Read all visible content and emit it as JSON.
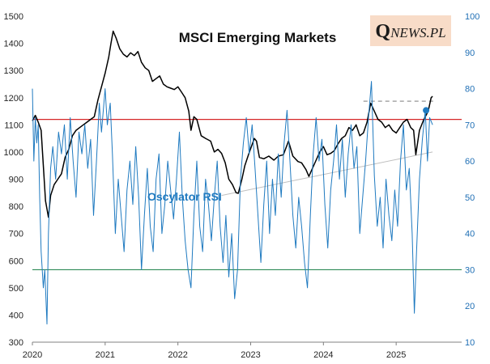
{
  "chart_data": {
    "type": "line",
    "title": "MSCI Emerging Markets",
    "logo": {
      "lead": "Q",
      "rest": "NEWS.PL"
    },
    "rsi_label": "Oscylator RSI",
    "left_axis": {
      "ticks": [
        300,
        400,
        500,
        600,
        700,
        800,
        900,
        1000,
        1100,
        1200,
        1300,
        1400,
        1500
      ],
      "ylim": [
        300,
        1500
      ]
    },
    "right_axis": {
      "ticks": [
        10,
        20,
        30,
        40,
        50,
        60,
        70,
        80,
        90,
        100
      ],
      "ylim": [
        10,
        100
      ]
    },
    "x_axis": {
      "ticks": [
        "2020",
        "2021",
        "2022",
        "2023",
        "2024",
        "2025"
      ],
      "xlim": [
        2020.0,
        2025.9
      ]
    },
    "reference_lines": [
      {
        "name": "rsi-overbought-line",
        "axis": "right",
        "value": 71.5,
        "color": "#d62728"
      },
      {
        "name": "rsi-oversold-line",
        "axis": "right",
        "value": 30,
        "color": "#2e8b57"
      }
    ],
    "resistance_line": {
      "axis": "left",
      "value": 1187,
      "x_start": 2024.55,
      "x_end": 2025.55,
      "color": "#a6a6a6"
    },
    "support_trendline": {
      "axis": "left",
      "points": [
        [
          2022.6,
          840
        ],
        [
          2025.5,
          1000
        ]
      ],
      "color": "#bfbfbf"
    },
    "current_rsi": {
      "x": 2025.4,
      "value": 74,
      "color": "#1f7ac0"
    },
    "series": [
      {
        "name": "MSCI Emerging Markets",
        "axis": "left",
        "color": "#000000",
        "points": [
          [
            2020.0,
            1115
          ],
          [
            2020.04,
            1135
          ],
          [
            2020.08,
            1110
          ],
          [
            2020.12,
            1080
          ],
          [
            2020.15,
            950
          ],
          [
            2020.18,
            820
          ],
          [
            2020.2,
            790
          ],
          [
            2020.22,
            760
          ],
          [
            2020.25,
            840
          ],
          [
            2020.3,
            880
          ],
          [
            2020.35,
            900
          ],
          [
            2020.4,
            920
          ],
          [
            2020.45,
            980
          ],
          [
            2020.5,
            1010
          ],
          [
            2020.55,
            1060
          ],
          [
            2020.6,
            1080
          ],
          [
            2020.65,
            1090
          ],
          [
            2020.7,
            1100
          ],
          [
            2020.75,
            1110
          ],
          [
            2020.8,
            1120
          ],
          [
            2020.85,
            1130
          ],
          [
            2020.9,
            1190
          ],
          [
            2020.95,
            1240
          ],
          [
            2021.0,
            1290
          ],
          [
            2021.05,
            1350
          ],
          [
            2021.08,
            1400
          ],
          [
            2021.11,
            1445
          ],
          [
            2021.15,
            1420
          ],
          [
            2021.2,
            1380
          ],
          [
            2021.25,
            1360
          ],
          [
            2021.3,
            1350
          ],
          [
            2021.35,
            1365
          ],
          [
            2021.4,
            1355
          ],
          [
            2021.45,
            1370
          ],
          [
            2021.5,
            1330
          ],
          [
            2021.55,
            1310
          ],
          [
            2021.6,
            1300
          ],
          [
            2021.65,
            1260
          ],
          [
            2021.7,
            1270
          ],
          [
            2021.75,
            1280
          ],
          [
            2021.8,
            1250
          ],
          [
            2021.85,
            1240
          ],
          [
            2021.9,
            1235
          ],
          [
            2021.95,
            1230
          ],
          [
            2022.0,
            1240
          ],
          [
            2022.05,
            1220
          ],
          [
            2022.1,
            1200
          ],
          [
            2022.15,
            1150
          ],
          [
            2022.18,
            1080
          ],
          [
            2022.22,
            1130
          ],
          [
            2022.26,
            1120
          ],
          [
            2022.32,
            1060
          ],
          [
            2022.38,
            1050
          ],
          [
            2022.45,
            1040
          ],
          [
            2022.5,
            1000
          ],
          [
            2022.55,
            1010
          ],
          [
            2022.6,
            995
          ],
          [
            2022.65,
            960
          ],
          [
            2022.7,
            900
          ],
          [
            2022.75,
            880
          ],
          [
            2022.8,
            850
          ],
          [
            2022.83,
            848
          ],
          [
            2022.88,
            900
          ],
          [
            2022.92,
            950
          ],
          [
            2022.97,
            990
          ],
          [
            2023.05,
            1050
          ],
          [
            2023.08,
            1040
          ],
          [
            2023.12,
            980
          ],
          [
            2023.18,
            975
          ],
          [
            2023.25,
            985
          ],
          [
            2023.32,
            970
          ],
          [
            2023.38,
            985
          ],
          [
            2023.45,
            990
          ],
          [
            2023.52,
            1040
          ],
          [
            2023.58,
            985
          ],
          [
            2023.65,
            965
          ],
          [
            2023.7,
            960
          ],
          [
            2023.76,
            935
          ],
          [
            2023.8,
            910
          ],
          [
            2023.85,
            940
          ],
          [
            2023.9,
            970
          ],
          [
            2023.95,
            1000
          ],
          [
            2024.0,
            1020
          ],
          [
            2024.05,
            990
          ],
          [
            2024.1,
            995
          ],
          [
            2024.15,
            1005
          ],
          [
            2024.2,
            1030
          ],
          [
            2024.25,
            1050
          ],
          [
            2024.3,
            1060
          ],
          [
            2024.35,
            1090
          ],
          [
            2024.4,
            1080
          ],
          [
            2024.45,
            1100
          ],
          [
            2024.5,
            1060
          ],
          [
            2024.55,
            1070
          ],
          [
            2024.6,
            1110
          ],
          [
            2024.65,
            1180
          ],
          [
            2024.7,
            1150
          ],
          [
            2024.75,
            1120
          ],
          [
            2024.8,
            1110
          ],
          [
            2024.85,
            1090
          ],
          [
            2024.9,
            1100
          ],
          [
            2024.95,
            1080
          ],
          [
            2025.0,
            1070
          ],
          [
            2025.05,
            1090
          ],
          [
            2025.1,
            1110
          ],
          [
            2025.15,
            1120
          ],
          [
            2025.2,
            1090
          ],
          [
            2025.24,
            1080
          ],
          [
            2025.27,
            990
          ],
          [
            2025.32,
            1080
          ],
          [
            2025.38,
            1120
          ],
          [
            2025.44,
            1150
          ],
          [
            2025.48,
            1200
          ],
          [
            2025.5,
            1205
          ]
        ]
      },
      {
        "name": "Oscylator RSI",
        "axis": "right",
        "color": "#1f7ac0",
        "points": [
          [
            2020.0,
            80
          ],
          [
            2020.02,
            60
          ],
          [
            2020.04,
            72
          ],
          [
            2020.06,
            65
          ],
          [
            2020.08,
            70
          ],
          [
            2020.1,
            50
          ],
          [
            2020.12,
            35
          ],
          [
            2020.15,
            25
          ],
          [
            2020.17,
            30
          ],
          [
            2020.2,
            15
          ],
          [
            2020.22,
            40
          ],
          [
            2020.25,
            58
          ],
          [
            2020.28,
            64
          ],
          [
            2020.32,
            55
          ],
          [
            2020.36,
            68
          ],
          [
            2020.4,
            62
          ],
          [
            2020.44,
            70
          ],
          [
            2020.48,
            55
          ],
          [
            2020.52,
            72
          ],
          [
            2020.56,
            60
          ],
          [
            2020.6,
            50
          ],
          [
            2020.64,
            68
          ],
          [
            2020.68,
            62
          ],
          [
            2020.72,
            70
          ],
          [
            2020.76,
            58
          ],
          [
            2020.8,
            66
          ],
          [
            2020.84,
            45
          ],
          [
            2020.88,
            60
          ],
          [
            2020.92,
            76
          ],
          [
            2020.95,
            68
          ],
          [
            2021.0,
            80
          ],
          [
            2021.03,
            70
          ],
          [
            2021.07,
            76
          ],
          [
            2021.1,
            62
          ],
          [
            2021.14,
            40
          ],
          [
            2021.18,
            55
          ],
          [
            2021.22,
            45
          ],
          [
            2021.26,
            35
          ],
          [
            2021.3,
            52
          ],
          [
            2021.34,
            60
          ],
          [
            2021.38,
            48
          ],
          [
            2021.42,
            64
          ],
          [
            2021.46,
            50
          ],
          [
            2021.5,
            30
          ],
          [
            2021.54,
            45
          ],
          [
            2021.58,
            58
          ],
          [
            2021.62,
            42
          ],
          [
            2021.66,
            35
          ],
          [
            2021.7,
            55
          ],
          [
            2021.74,
            62
          ],
          [
            2021.78,
            40
          ],
          [
            2021.82,
            48
          ],
          [
            2021.86,
            60
          ],
          [
            2021.9,
            52
          ],
          [
            2021.94,
            44
          ],
          [
            2021.98,
            55
          ],
          [
            2022.02,
            68
          ],
          [
            2022.06,
            50
          ],
          [
            2022.1,
            38
          ],
          [
            2022.14,
            30
          ],
          [
            2022.18,
            25
          ],
          [
            2022.22,
            45
          ],
          [
            2022.26,
            60
          ],
          [
            2022.3,
            42
          ],
          [
            2022.34,
            35
          ],
          [
            2022.38,
            55
          ],
          [
            2022.42,
            48
          ],
          [
            2022.46,
            38
          ],
          [
            2022.5,
            50
          ],
          [
            2022.54,
            60
          ],
          [
            2022.58,
            42
          ],
          [
            2022.62,
            32
          ],
          [
            2022.66,
            45
          ],
          [
            2022.7,
            28
          ],
          [
            2022.74,
            40
          ],
          [
            2022.78,
            22
          ],
          [
            2022.82,
            30
          ],
          [
            2022.86,
            55
          ],
          [
            2022.9,
            65
          ],
          [
            2022.94,
            72
          ],
          [
            2022.98,
            62
          ],
          [
            2023.02,
            70
          ],
          [
            2023.06,
            58
          ],
          [
            2023.1,
            45
          ],
          [
            2023.14,
            32
          ],
          [
            2023.18,
            48
          ],
          [
            2023.22,
            60
          ],
          [
            2023.26,
            40
          ],
          [
            2023.3,
            55
          ],
          [
            2023.34,
            45
          ],
          [
            2023.38,
            62
          ],
          [
            2023.42,
            50
          ],
          [
            2023.46,
            65
          ],
          [
            2023.5,
            74
          ],
          [
            2023.54,
            60
          ],
          [
            2023.58,
            45
          ],
          [
            2023.62,
            36
          ],
          [
            2023.66,
            50
          ],
          [
            2023.7,
            42
          ],
          [
            2023.74,
            32
          ],
          [
            2023.78,
            25
          ],
          [
            2023.82,
            45
          ],
          [
            2023.86,
            62
          ],
          [
            2023.9,
            72
          ],
          [
            2023.94,
            60
          ],
          [
            2023.98,
            66
          ],
          [
            2024.02,
            48
          ],
          [
            2024.06,
            36
          ],
          [
            2024.1,
            52
          ],
          [
            2024.14,
            60
          ],
          [
            2024.18,
            70
          ],
          [
            2024.22,
            55
          ],
          [
            2024.26,
            66
          ],
          [
            2024.3,
            50
          ],
          [
            2024.34,
            62
          ],
          [
            2024.38,
            70
          ],
          [
            2024.42,
            58
          ],
          [
            2024.46,
            64
          ],
          [
            2024.5,
            40
          ],
          [
            2024.54,
            50
          ],
          [
            2024.58,
            60
          ],
          [
            2024.62,
            72
          ],
          [
            2024.66,
            82
          ],
          [
            2024.7,
            56
          ],
          [
            2024.74,
            42
          ],
          [
            2024.78,
            50
          ],
          [
            2024.82,
            36
          ],
          [
            2024.86,
            55
          ],
          [
            2024.9,
            45
          ],
          [
            2024.94,
            38
          ],
          [
            2024.98,
            52
          ],
          [
            2025.02,
            42
          ],
          [
            2025.06,
            60
          ],
          [
            2025.1,
            70
          ],
          [
            2025.14,
            52
          ],
          [
            2025.18,
            58
          ],
          [
            2025.22,
            40
          ],
          [
            2025.25,
            18
          ],
          [
            2025.28,
            35
          ],
          [
            2025.32,
            55
          ],
          [
            2025.36,
            66
          ],
          [
            2025.4,
            74
          ],
          [
            2025.43,
            60
          ],
          [
            2025.46,
            72
          ],
          [
            2025.5,
            70
          ]
        ]
      }
    ]
  }
}
